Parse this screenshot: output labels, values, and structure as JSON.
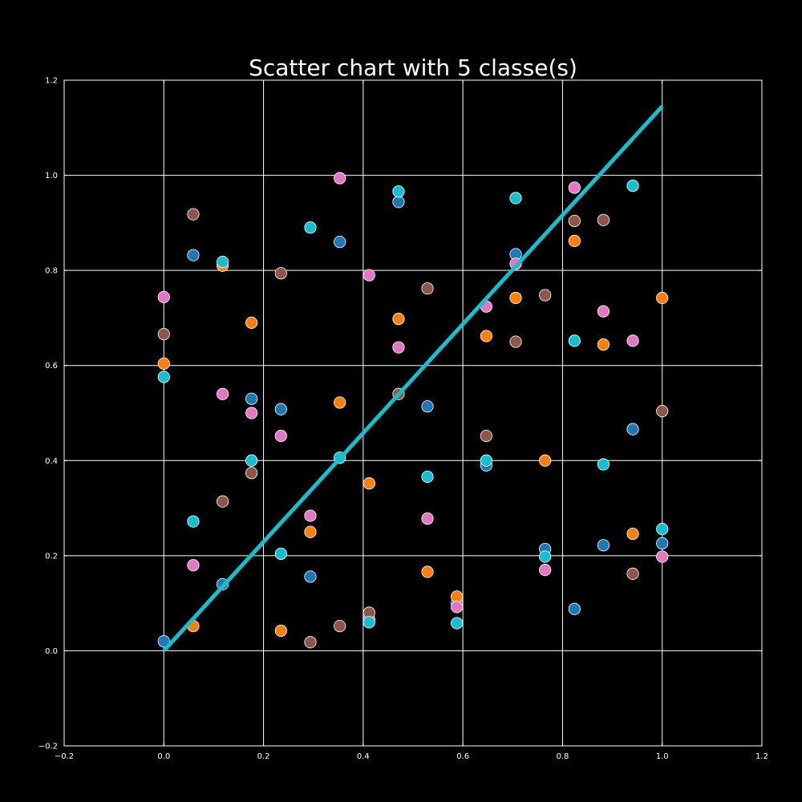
{
  "chart_data": {
    "type": "scatter",
    "title": "Scatter chart with 5 classe(s)",
    "xlabel": "",
    "ylabel": "",
    "xlim": [
      -0.2,
      1.2
    ],
    "ylim": [
      -0.2,
      1.2
    ],
    "grid": true,
    "legend": "none",
    "background": "#000000",
    "axis_color": "#ffffff",
    "x_ticks": [
      -0.2,
      0.0,
      0.2,
      0.4,
      0.6,
      0.8,
      1.0,
      1.2
    ],
    "x_tick_labels": [
      "−0.2",
      "0.0",
      "0.2",
      "0.4",
      "0.6",
      "0.8",
      "1.0",
      "1.2"
    ],
    "y_ticks": [
      -0.2,
      0.0,
      0.2,
      0.4,
      0.6,
      0.8,
      1.0,
      1.2
    ],
    "y_tick_labels": [
      "−0.2",
      "0.0",
      "0.2",
      "0.4",
      "0.6",
      "0.8",
      "1.0",
      "1.2"
    ],
    "series": [
      {
        "color": "#1f77b4",
        "points": [
          [
            0.0,
            0.02
          ],
          [
            0.059,
            0.832
          ],
          [
            0.118,
            0.14
          ],
          [
            0.176,
            0.53
          ],
          [
            0.235,
            0.508
          ],
          [
            0.294,
            0.156
          ],
          [
            0.353,
            0.86
          ],
          [
            0.412,
            0.066
          ],
          [
            0.471,
            0.944
          ],
          [
            0.529,
            0.514
          ],
          [
            0.588,
            0.1
          ],
          [
            0.647,
            0.39
          ],
          [
            0.706,
            0.834
          ],
          [
            0.765,
            0.214
          ],
          [
            0.824,
            0.088
          ],
          [
            0.882,
            0.222
          ],
          [
            0.941,
            0.466
          ],
          [
            1.0,
            0.226
          ]
        ]
      },
      {
        "color": "#ff7f0e",
        "points": [
          [
            0.0,
            0.604
          ],
          [
            0.059,
            0.052
          ],
          [
            0.118,
            0.81
          ],
          [
            0.176,
            0.69
          ],
          [
            0.235,
            0.042
          ],
          [
            0.294,
            0.25
          ],
          [
            0.353,
            0.522
          ],
          [
            0.412,
            0.352
          ],
          [
            0.471,
            0.698
          ],
          [
            0.529,
            0.166
          ],
          [
            0.588,
            0.114
          ],
          [
            0.647,
            0.662
          ],
          [
            0.706,
            0.742
          ],
          [
            0.765,
            0.4
          ],
          [
            0.824,
            0.862
          ],
          [
            0.882,
            0.644
          ],
          [
            0.941,
            0.246
          ],
          [
            1.0,
            0.742
          ]
        ]
      },
      {
        "color": "#e377c2",
        "points": [
          [
            0.0,
            0.744
          ],
          [
            0.059,
            0.18
          ],
          [
            0.118,
            0.54
          ],
          [
            0.176,
            0.5
          ],
          [
            0.235,
            0.452
          ],
          [
            0.294,
            0.284
          ],
          [
            0.353,
            0.994
          ],
          [
            0.412,
            0.79
          ],
          [
            0.471,
            0.638
          ],
          [
            0.529,
            0.278
          ],
          [
            0.588,
            0.092
          ],
          [
            0.647,
            0.724
          ],
          [
            0.706,
            0.814
          ],
          [
            0.765,
            0.17
          ],
          [
            0.824,
            0.974
          ],
          [
            0.882,
            0.714
          ],
          [
            0.941,
            0.652
          ],
          [
            1.0,
            0.198
          ]
        ]
      },
      {
        "color": "#8c564b",
        "points": [
          [
            0.0,
            0.666
          ],
          [
            0.059,
            0.918
          ],
          [
            0.118,
            0.314
          ],
          [
            0.176,
            0.374
          ],
          [
            0.235,
            0.794
          ],
          [
            0.294,
            0.018
          ],
          [
            0.353,
            0.052
          ],
          [
            0.412,
            0.08
          ],
          [
            0.471,
            0.54
          ],
          [
            0.529,
            0.762
          ],
          [
            0.647,
            0.452
          ],
          [
            0.706,
            0.65
          ],
          [
            0.765,
            0.748
          ],
          [
            0.824,
            0.904
          ],
          [
            0.882,
            0.906
          ],
          [
            0.941,
            0.162
          ],
          [
            1.0,
            0.504
          ]
        ]
      },
      {
        "color": "#17becf",
        "points": [
          [
            0.0,
            0.576
          ],
          [
            0.059,
            0.272
          ],
          [
            0.118,
            0.818
          ],
          [
            0.176,
            0.4
          ],
          [
            0.235,
            0.204
          ],
          [
            0.294,
            0.89
          ],
          [
            0.353,
            0.406
          ],
          [
            0.412,
            0.06
          ],
          [
            0.471,
            0.966
          ],
          [
            0.529,
            0.366
          ],
          [
            0.588,
            0.058
          ],
          [
            0.647,
            0.4
          ],
          [
            0.706,
            0.952
          ],
          [
            0.765,
            0.198
          ],
          [
            0.824,
            0.652
          ],
          [
            0.882,
            0.392
          ],
          [
            0.941,
            0.978
          ],
          [
            1.0,
            0.256
          ]
        ]
      }
    ],
    "trend_line": {
      "color": "#17becf",
      "x": [
        0.0,
        1.0
      ],
      "y": [
        0.0,
        1.145
      ]
    }
  }
}
